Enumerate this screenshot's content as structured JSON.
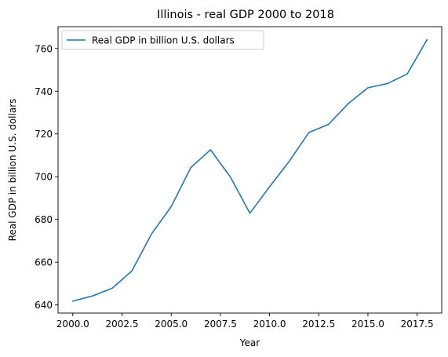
{
  "chart_data": {
    "type": "line",
    "title": "Illinois - real GDP 2000 to 2018",
    "xlabel": "Year",
    "ylabel": "Real GDP in billion U.S. dollars",
    "xlim": [
      1999.25,
      2018.75
    ],
    "ylim": [
      636.2,
      770.2
    ],
    "xticks": [
      2000,
      2002.5,
      2005,
      2007.5,
      2010,
      2012.5,
      2015,
      2017.5
    ],
    "xtick_labels": [
      "2000.0",
      "2002.5",
      "2005.0",
      "2007.5",
      "2010.0",
      "2012.5",
      "2015.0",
      "2017.5"
    ],
    "yticks": [
      640,
      660,
      680,
      700,
      720,
      740,
      760
    ],
    "ytick_labels": [
      "640",
      "660",
      "680",
      "700",
      "720",
      "740",
      "760"
    ],
    "grid": false,
    "legend_position": "upper-left",
    "series": [
      {
        "name": "Real GDP in billion U.S. dollars",
        "color": "#1f77b4",
        "x": [
          2000,
          2001,
          2002,
          2003,
          2004,
          2005,
          2006,
          2007,
          2008,
          2009,
          2010,
          2011,
          2012,
          2013,
          2014,
          2015,
          2016,
          2017,
          2018
        ],
        "y": [
          641.8,
          644.2,
          647.8,
          655.9,
          673.2,
          686.0,
          704.3,
          712.6,
          700.0,
          682.9,
          695.3,
          707.2,
          720.7,
          724.5,
          734.2,
          741.6,
          743.6,
          748.1,
          764.1
        ]
      }
    ]
  }
}
